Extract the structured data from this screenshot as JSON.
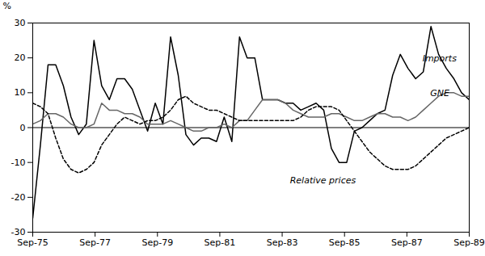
{
  "chart_data": {
    "type": "line",
    "ylabel": "%",
    "x": [
      0,
      0.982456,
      1.964912,
      2.947368,
      3.929825,
      4.912281,
      5.894737,
      6.877193,
      7.859649,
      8.842105,
      9.824561,
      10.807018,
      11.789474,
      12.77193,
      13.754386,
      14.736842,
      15.719298,
      16.701754,
      17.684211,
      18.666667,
      19.649123,
      20.631579,
      21.614035,
      22.596491,
      23.578947,
      24.561404,
      25.54386,
      26.526316,
      27.508772,
      28.491228,
      29.473684,
      30.45614,
      31.438596,
      32.421053,
      33.403509,
      34.385965,
      35.368421,
      36.350877,
      37.333333,
      38.315789,
      39.298246,
      40.280702,
      41.263158,
      42.245614,
      43.22807,
      44.210526,
      45.192982,
      46.175439,
      47.157895,
      48.140351,
      49.122807,
      50.105263,
      51.087719,
      52.070175,
      53.052632,
      54.035088,
      55.017544,
      56
    ],
    "xlim": [
      0,
      56
    ],
    "xticks": [
      {
        "value": 0,
        "label": "Sep-75"
      },
      {
        "value": 8,
        "label": "Sep-77"
      },
      {
        "value": 16,
        "label": "Sep-79"
      },
      {
        "value": 24,
        "label": "Sep-81"
      },
      {
        "value": 32,
        "label": "Sep-83"
      },
      {
        "value": 40,
        "label": "Sep-85"
      },
      {
        "value": 48,
        "label": "Sep-87"
      },
      {
        "value": 56,
        "label": "Sep-89"
      }
    ],
    "ylim": [
      -30,
      30
    ],
    "yticks": [
      -30,
      -20,
      -10,
      0,
      10,
      20,
      30
    ],
    "grid": false,
    "series": [
      {
        "color": "#000000",
        "line_style": "solid",
        "values": [
          -26,
          -5,
          18,
          18,
          12,
          3,
          -2,
          1,
          25,
          12,
          8,
          14,
          14,
          11,
          5,
          -1,
          7,
          1,
          26,
          15,
          -2,
          -5,
          -3,
          -3,
          -4,
          3,
          -4,
          26,
          20,
          20,
          8,
          8,
          8,
          7,
          7,
          5,
          6,
          7,
          5,
          -6,
          -10,
          -10,
          -1,
          0,
          2,
          4,
          5,
          15,
          21,
          17,
          14,
          16,
          29,
          21,
          17,
          14,
          10,
          8
        ]
      },
      {
        "color": "#666666",
        "line_style": "solid",
        "values": [
          1,
          2,
          4,
          4,
          3,
          1,
          0,
          0,
          1,
          7,
          5,
          5,
          4,
          4,
          3,
          1,
          1,
          1,
          2,
          1,
          0,
          -1,
          -1,
          0,
          0,
          1,
          0,
          2,
          2,
          5,
          8,
          8,
          8,
          7,
          5,
          4,
          3,
          3,
          3,
          4,
          4,
          3,
          2,
          2,
          3,
          4,
          4,
          3,
          3,
          2,
          3,
          5,
          7,
          9,
          10,
          10,
          9,
          9
        ]
      },
      {
        "color": "#000000",
        "line_style": "dashed",
        "values": [
          7,
          6,
          4,
          -3,
          -9,
          -12,
          -13,
          -12,
          -10,
          -5,
          -2,
          1,
          3,
          2,
          1,
          2,
          2,
          3,
          5,
          8,
          9,
          7,
          6,
          5,
          5,
          4,
          3,
          2,
          2,
          2,
          2,
          2,
          2,
          2,
          2,
          3,
          5,
          6,
          6,
          6,
          5,
          2,
          -1,
          -4,
          -7,
          -9,
          -11,
          -12,
          -12,
          -12,
          -11,
          -9,
          -7,
          -5,
          -3,
          -2,
          -1,
          0
        ]
      }
    ],
    "annotations": [
      {
        "text": "Imports",
        "x": 50,
        "y": 19
      },
      {
        "text": "GNE",
        "x": 51,
        "y": 9
      },
      {
        "text": "Relative prices",
        "x": 33,
        "y": -16
      }
    ]
  }
}
